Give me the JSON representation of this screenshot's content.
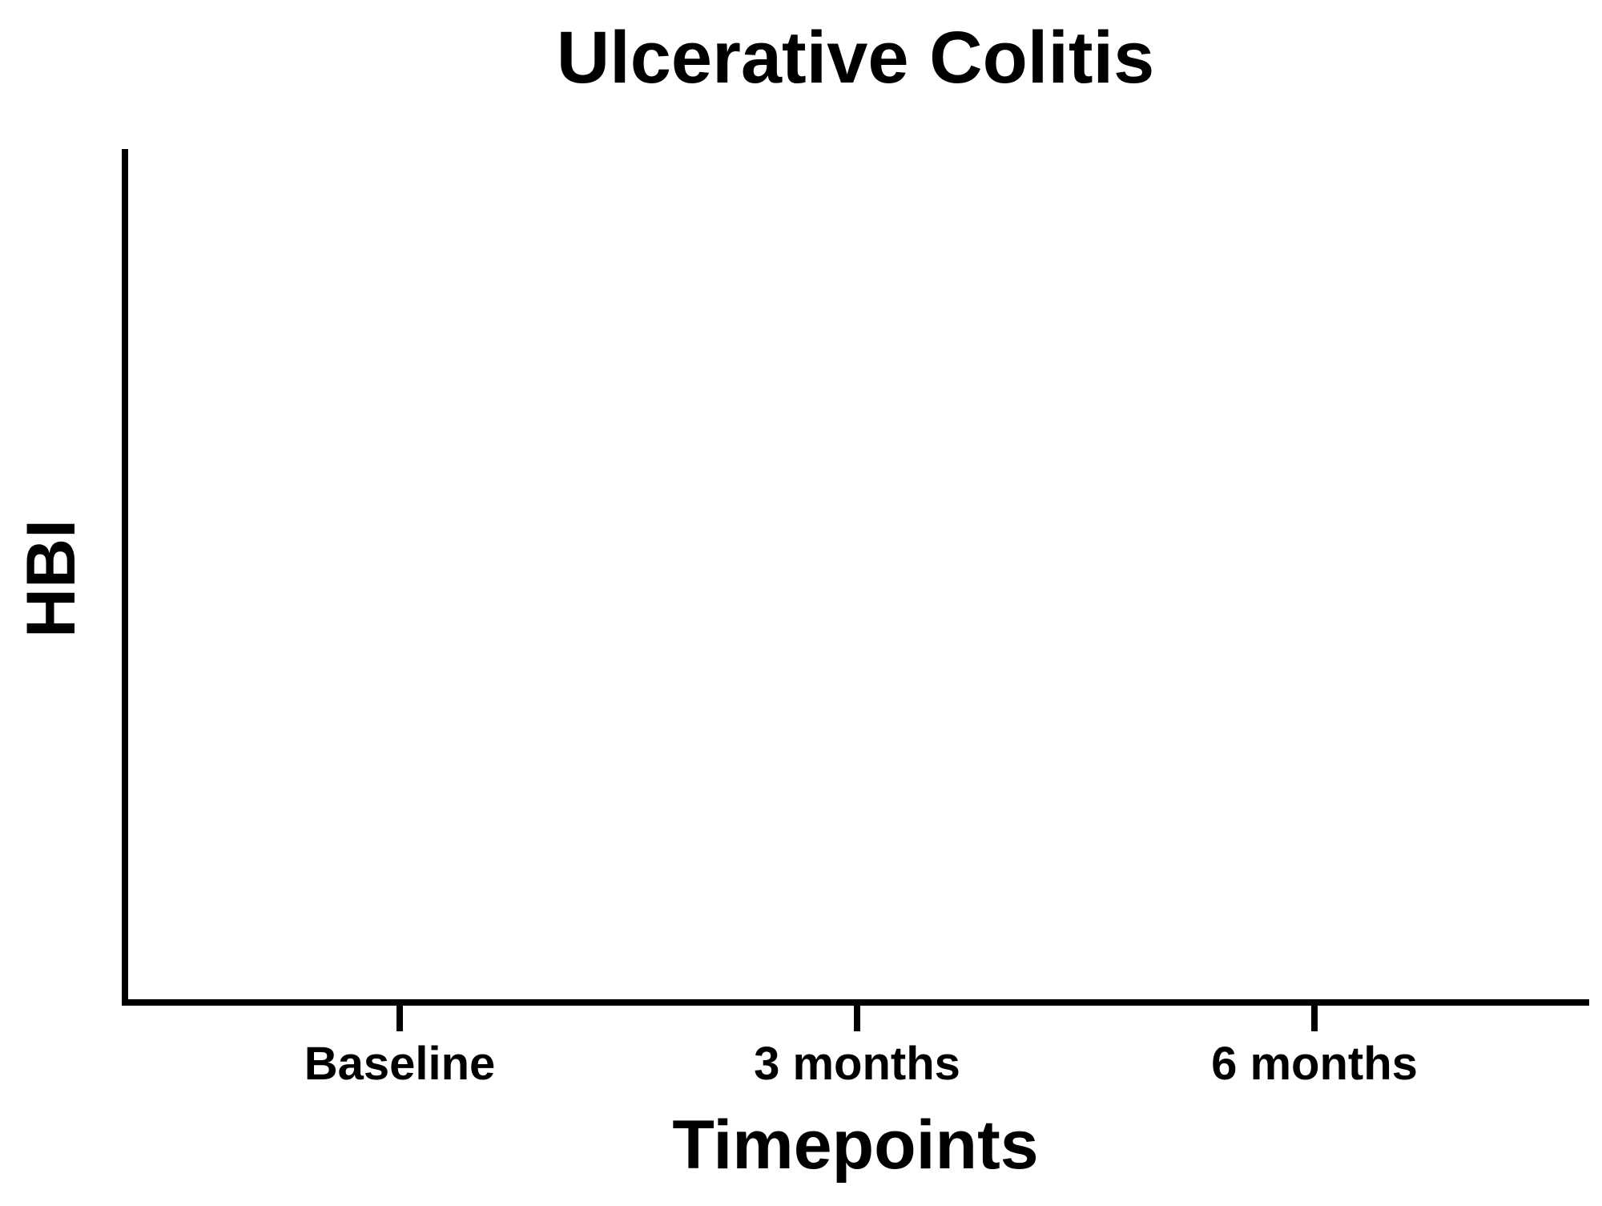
{
  "chart_data": {
    "type": "scatter",
    "title": "Ulcerative Colitis",
    "xlabel": "Timepoints",
    "ylabel": "HBI",
    "categories": [
      "Baseline",
      "3 months",
      "6 months"
    ],
    "series": [],
    "grid": false,
    "legend": "none",
    "colors": {
      "axis": "#000000",
      "background": "#ffffff"
    }
  }
}
